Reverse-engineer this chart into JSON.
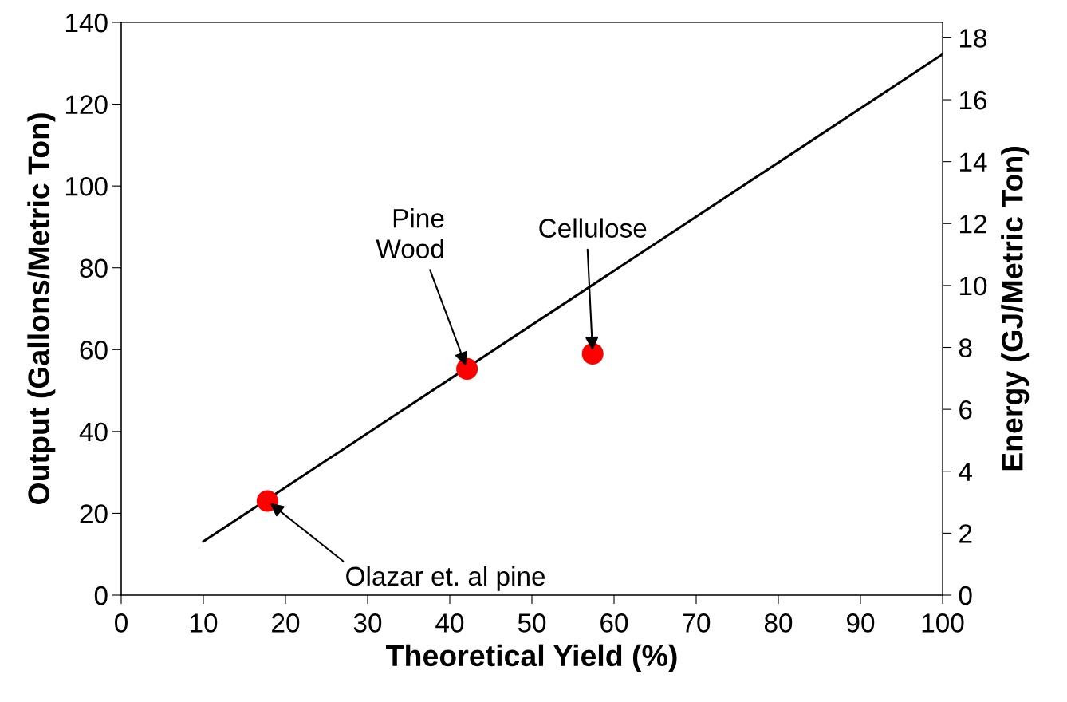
{
  "chart_data": {
    "type": "scatter",
    "xlabel": "Theoretical Yield (%)",
    "ylabel": "Output (Gallons/Metric Ton)",
    "y2label": "Energy (GJ/Metric Ton)",
    "series": [
      {
        "type": "line",
        "color": "#000000",
        "x": [
          10,
          100
        ],
        "values": [
          13.1,
          132.2
        ],
        "marker": "none",
        "line_style": "solid"
      },
      {
        "color": "#ff0000",
        "x": [
          17.8,
          42.1,
          57.4
        ],
        "values": [
          23.0,
          55.3,
          59.0
        ],
        "marker": "circle"
      }
    ],
    "xlim": [
      0,
      100
    ],
    "xticks": [
      0,
      10,
      20,
      30,
      40,
      50,
      60,
      70,
      80,
      90,
      100
    ],
    "ylim": [
      0,
      140
    ],
    "yticks": [
      0,
      20,
      40,
      60,
      80,
      100,
      120,
      140
    ],
    "y2lim": [
      0,
      18.5
    ],
    "y2ticks": [
      0,
      2,
      4,
      6,
      8,
      10,
      12,
      14,
      16,
      18
    ],
    "grid": false,
    "annotations": [
      {
        "text": "Olazar et. al pine",
        "x": 17.8,
        "y": 23.0
      },
      {
        "text": "Pine\nWood",
        "x": 42.1,
        "y": 55.3
      },
      {
        "text": "Cellulose",
        "x": 57.4,
        "y": 59.0
      }
    ]
  }
}
